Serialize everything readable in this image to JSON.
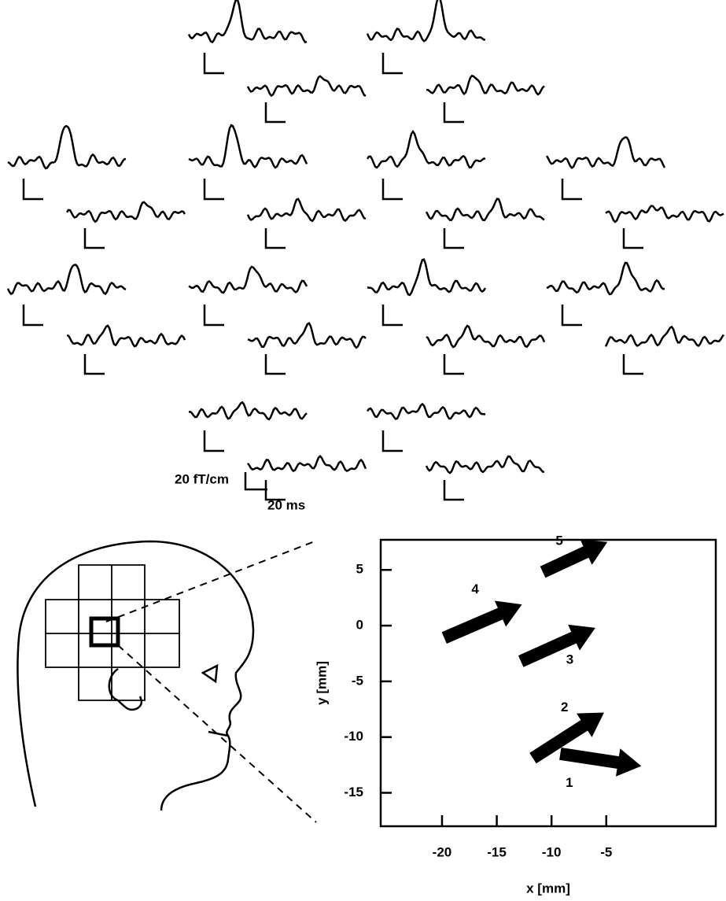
{
  "calibration": {
    "amplitude": "20 fT/cm",
    "time": "20 ms"
  },
  "chart_data": {
    "type": "vector",
    "xlabel": "x [mm]",
    "ylabel": "y [mm]",
    "xlim": [
      -25.6,
      5.0
    ],
    "ylim": [
      -18.0,
      7.7
    ],
    "xticks": [
      -20,
      -15,
      -10,
      -5
    ],
    "yticks": [
      5,
      0,
      -5,
      -10,
      -15
    ],
    "color": "#000000",
    "arrows": [
      {
        "label": "1",
        "x": [
          -9.2,
          -1.8
        ],
        "y": [
          -11.5,
          -12.6
        ]
      },
      {
        "label": "2",
        "x": [
          -11.7,
          -5.2
        ],
        "y": [
          -11.9,
          -7.8
        ]
      },
      {
        "label": "3",
        "x": [
          -12.8,
          -6.0
        ],
        "y": [
          -3.2,
          -0.2
        ]
      },
      {
        "label": "4",
        "x": [
          -19.8,
          -12.7
        ],
        "y": [
          -1.1,
          1.9
        ]
      },
      {
        "label": "5",
        "x": [
          -10.8,
          -4.9
        ],
        "y": [
          4.8,
          7.5
        ]
      }
    ]
  }
}
